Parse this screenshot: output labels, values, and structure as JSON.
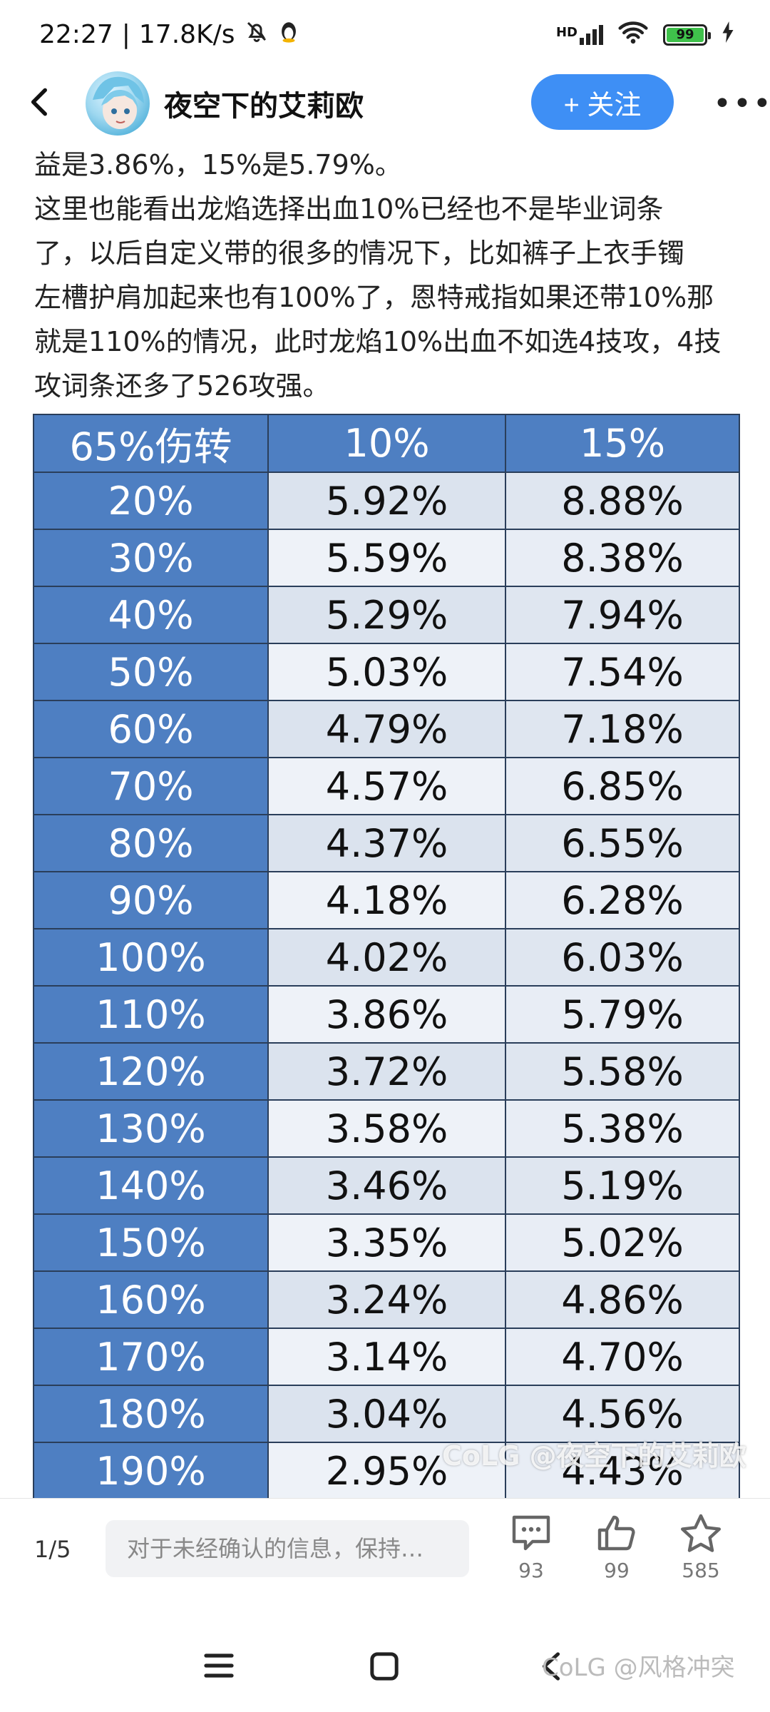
{
  "status": {
    "time": "22:27",
    "speed": "17.8K/s",
    "signal": "HD",
    "battery": "99"
  },
  "header": {
    "author": "夜空下的艾莉欧",
    "follow": "+ 关注"
  },
  "content": {
    "lines": [
      "益是3.86%，15%是5.79%。",
      "这里也能看出龙焰选择出血10%已经也不是毕业词条",
      "了，以后自定义带的很多的情况下，比如裤子上衣手镯",
      "左槽护肩加起来也有100%了，恩特戒指如果还带10%那",
      "就是110%的情况，此时龙焰10%出血不如选4技攻，4技",
      "攻词条还多了526攻强。"
    ]
  },
  "table": {
    "headers": [
      "65%伤转",
      "10%",
      "15%"
    ],
    "rows": [
      [
        "20%",
        "5.92%",
        "8.88%"
      ],
      [
        "30%",
        "5.59%",
        "8.38%"
      ],
      [
        "40%",
        "5.29%",
        "7.94%"
      ],
      [
        "50%",
        "5.03%",
        "7.54%"
      ],
      [
        "60%",
        "4.79%",
        "7.18%"
      ],
      [
        "70%",
        "4.57%",
        "6.85%"
      ],
      [
        "80%",
        "4.37%",
        "6.55%"
      ],
      [
        "90%",
        "4.18%",
        "6.28%"
      ],
      [
        "100%",
        "4.02%",
        "6.03%"
      ],
      [
        "110%",
        "3.86%",
        "5.79%"
      ],
      [
        "120%",
        "3.72%",
        "5.58%"
      ],
      [
        "130%",
        "3.58%",
        "5.38%"
      ],
      [
        "140%",
        "3.46%",
        "5.19%"
      ],
      [
        "150%",
        "3.35%",
        "5.02%"
      ],
      [
        "160%",
        "3.24%",
        "4.86%"
      ],
      [
        "170%",
        "3.14%",
        "4.70%"
      ],
      [
        "180%",
        "3.04%",
        "4.56%"
      ],
      [
        "190%",
        "2.95%",
        "4.43%"
      ]
    ],
    "watermark": "CoLG @夜空下的艾莉欧"
  },
  "action_bar": {
    "page": "1/5",
    "comment_placeholder": "对于未经确认的信息，保持…",
    "comments": "93",
    "likes": "99",
    "favorites": "585"
  },
  "bottom_watermark": "CoLG @风格冲突"
}
